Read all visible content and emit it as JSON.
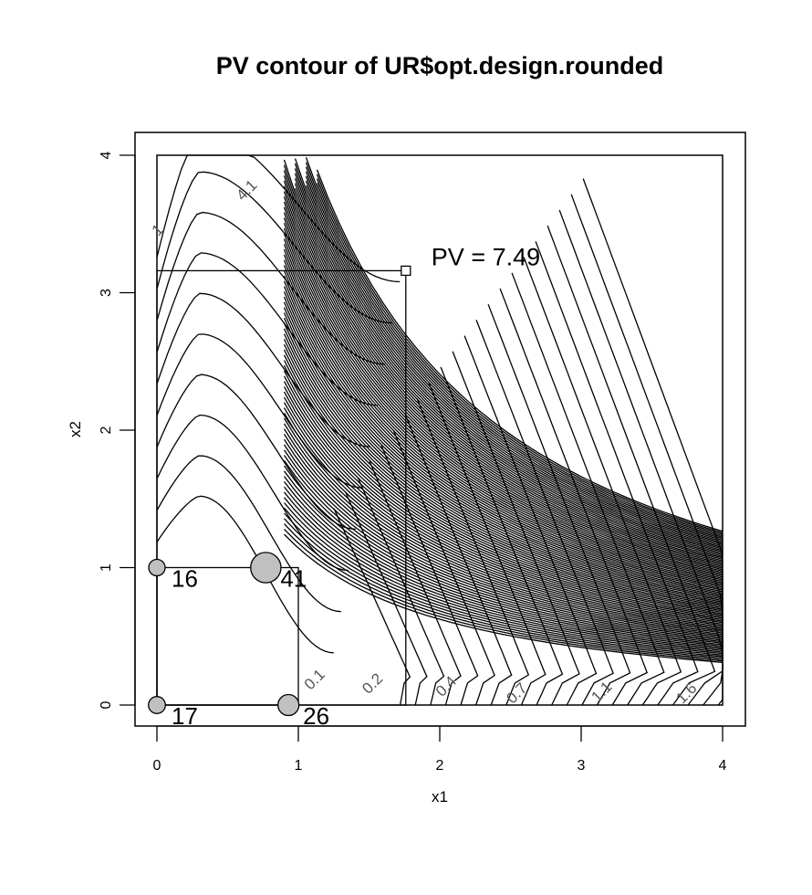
{
  "chart_data": {
    "type": "contour",
    "title": "PV contour of UR$opt.design.rounded",
    "xlabel": "x1",
    "ylabel": "x2",
    "xlim": [
      0,
      4
    ],
    "ylim": [
      0,
      4
    ],
    "x_ticks": [
      "0",
      "1",
      "2",
      "3",
      "4"
    ],
    "y_ticks": [
      "0",
      "1",
      "2",
      "3",
      "4"
    ],
    "design_points": [
      {
        "x": 0,
        "y": 1,
        "label": "16",
        "weight": 16
      },
      {
        "x": 0.77,
        "y": 1,
        "label": "41",
        "weight": 41
      },
      {
        "x": 0,
        "y": 0,
        "label": "17",
        "weight": 17
      },
      {
        "x": 0.93,
        "y": 0,
        "label": "26",
        "weight": 26
      }
    ],
    "contour_labels": [
      {
        "text": "0.1",
        "x": 1.14,
        "y": 0.16
      },
      {
        "text": "0.2",
        "x": 1.55,
        "y": 0.13
      },
      {
        "text": "0.4",
        "x": 2.07,
        "y": 0.11
      },
      {
        "text": "0.7",
        "x": 2.57,
        "y": 0.06
      },
      {
        "text": "1.1",
        "x": 3.17,
        "y": 0.07
      },
      {
        "text": "1.6",
        "x": 3.77,
        "y": 0.06
      },
      {
        "text": "4.1",
        "x": 0.66,
        "y": 3.72
      },
      {
        "text": "1",
        "x": 0.03,
        "y": 3.43
      }
    ],
    "max_pv": {
      "x": 1.76,
      "y": 3.16,
      "label": "PV = 7.49"
    },
    "rectangles": [
      {
        "x0": 0,
        "x1": 1,
        "y0": 0,
        "y1": 1
      },
      {
        "x0": 0,
        "x1": 1.76,
        "y0": 0,
        "y1": 3.16
      }
    ],
    "contour_curves": {
      "left_family_levels": 10,
      "right_family_levels": 22,
      "upper_band_levels": 90
    }
  }
}
